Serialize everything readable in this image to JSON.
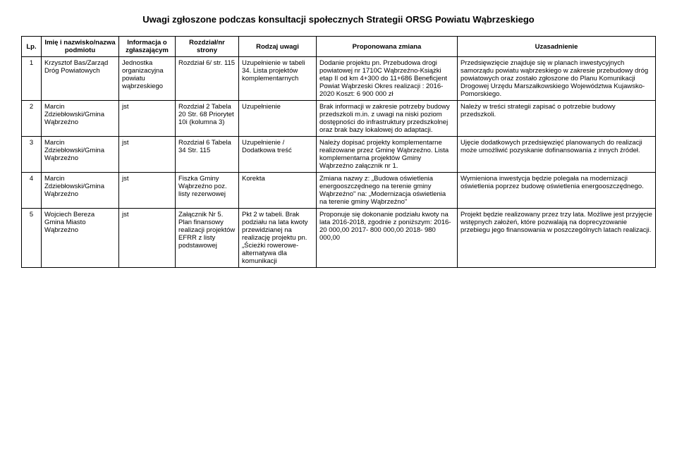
{
  "title": "Uwagi zgłoszone podczas konsultacji społecznych Strategii ORSG Powiatu Wąbrzeskiego",
  "headers": {
    "lp": "Lp.",
    "name": "Imię i nazwisko/nazwa podmiotu",
    "info": "Informacja o zgłaszającym",
    "section": "Rozdział/nr strony",
    "type": "Rodzaj uwagi",
    "proposed": "Proponowana zmiana",
    "reason": "Uzasadnienie"
  },
  "rows": [
    {
      "lp": "1",
      "name": "Krzysztof Bas/Zarząd Dróg Powiatowych",
      "info": "Jednostka organizacyjna powiatu wąbrzeskiego",
      "section": "Rozdział 6/ str. 115",
      "type": "Uzupełnienie w tabeli 34. Lista projektów komplementarnych",
      "proposed": "Dodanie projektu pn. Przebudowa drogi powiatowej nr 1710C Wąbrzeźno-Książki etap II od km 4+300 do 11+686 Beneficjent Powiat Wąbrzeski Okres realizacji : 2016-2020 Koszt: 6 900 000 zł",
      "reason": "Przedsięwzięcie znajduje się w planach inwestycyjnych samorządu powiatu wąbrzeskiego w zakresie przebudowy dróg powiatowych oraz zostało zgłoszone do Planu Komunikacji Drogowej Urzędu Marszałkowskiego Województwa Kujawsko-Pomorskiego."
    },
    {
      "lp": "2",
      "name": "Marcin Zdziebłowski/Gmina Wąbrzeźno",
      "info": "jst",
      "section": "Rozdział 2 Tabela 20 Str. 68 Priorytet 10i (kolumna 3)",
      "type": "Uzupełnienie",
      "proposed": "Brak informacji w zakresie potrzeby budowy przedszkoli m.in. z uwagi na niski poziom dostępności do infrastruktury przedszkolnej oraz brak bazy lokalowej do adaptacji.",
      "reason": "Należy w treści strategii zapisać o potrzebie budowy przedszkoli."
    },
    {
      "lp": "3",
      "name": "Marcin Zdziebłowski/Gmina Wąbrzeźno",
      "info": "jst",
      "section": "Rozdział 6 Tabela 34 Str. 115",
      "type": "Uzupełnienie / Dodatkowa treść",
      "proposed": "Należy dopisać projekty komplementarne realizowane przez Gminę Wąbrzeźno. Lista komplementarna projektów Gminy Wąbrzeźno załącznik nr 1.",
      "reason": "Ujęcie dodatkowych przedsięwzięć planowanych do realizacji może umożliwić pozyskanie dofinansowania z innych źródeł."
    },
    {
      "lp": "4",
      "name": "Marcin Zdziebłowski/Gmina Wąbrzeźno",
      "info": "jst",
      "section": "Fiszka Gminy Wąbrzeźno poz. listy rezerwowej",
      "type": "Korekta",
      "proposed": "Zmiana nazwy z: „Budowa oświetlenia energooszczędnego na terenie gminy Wąbrzeźno\" na: „Modernizacja oświetlenia na terenie gminy Wąbrzeźno\"",
      "reason": "Wymieniona inwestycja będzie polegała na modernizacji oświetlenia poprzez budowę oświetlenia energooszczędnego."
    },
    {
      "lp": "5",
      "name": "Wojciech Bereza Gmina Miasto Wąbrzeźno",
      "info": "jst",
      "section": "Załącznik Nr 5. Plan finansowy realizacji projektów EFRR z listy podstawowej",
      "type": "Pkt 2 w tabeli. Brak podziału na lata kwoty przewidzianej na realizację projektu pn. „Ścieżki rowerowe- alternatywa dla komunikacji",
      "proposed": "Proponuje się dokonanie podziału kwoty na lata 2016-2018, zgodnie z poniższym:\n2016- 20 000,00\n2017- 800 000,00\n2018- 980 000,00",
      "reason": "Projekt będzie realizowany przez trzy lata. Możliwe jest przyjęcie wstępnych założeń, które pozwalają na doprecyzowanie przebiegu jego finansowania w poszczególnych latach realizacji."
    }
  ]
}
